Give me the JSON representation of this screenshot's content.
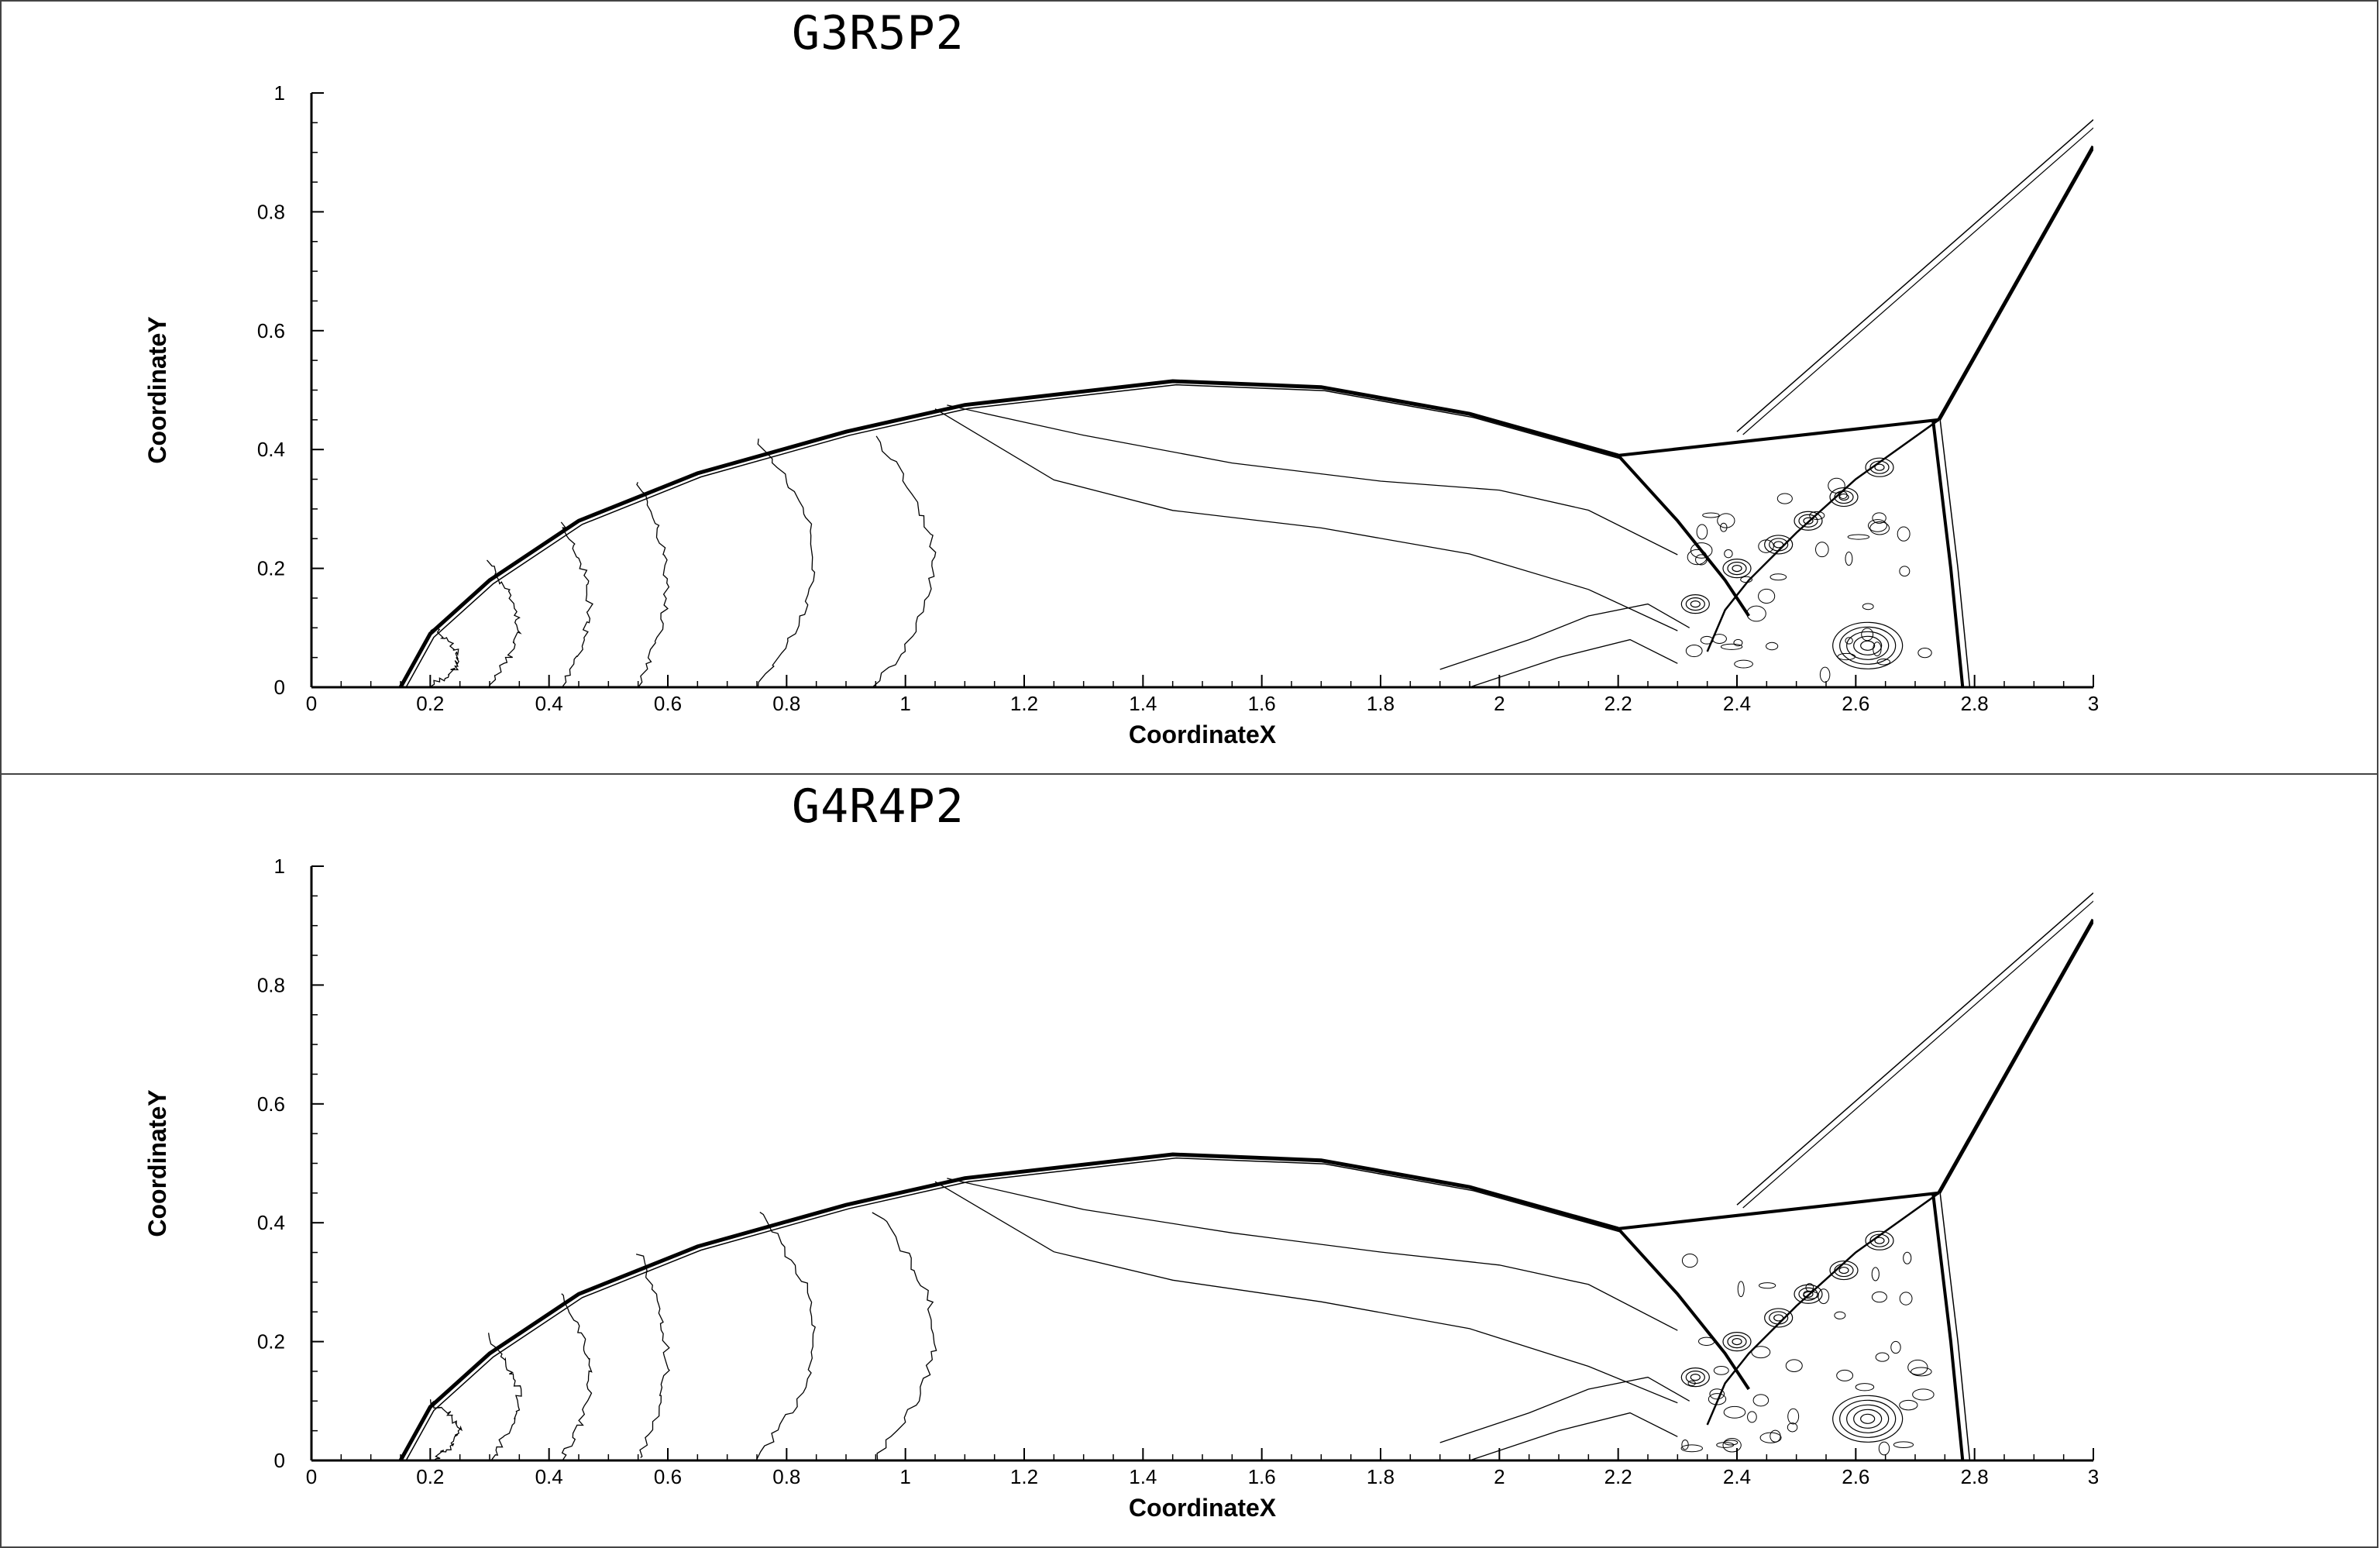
{
  "chart_data": [
    {
      "type": "contour",
      "title": "G3R5P2",
      "xlabel": "CoordinateX",
      "ylabel": "CoordinateY",
      "xlim": [
        0,
        3
      ],
      "ylim": [
        0,
        1
      ],
      "xticks": [
        "0",
        "0.2",
        "0.4",
        "0.6",
        "0.8",
        "1",
        "1.2",
        "1.4",
        "1.6",
        "1.8",
        "2",
        "2.2",
        "2.4",
        "2.6",
        "2.8",
        "3"
      ],
      "yticks": [
        "0",
        "0.2",
        "0.4",
        "0.6",
        "0.8",
        "1"
      ],
      "features": {
        "bow_shock": [
          [
            0.15,
            0.0
          ],
          [
            0.2,
            0.09
          ],
          [
            0.3,
            0.18
          ],
          [
            0.45,
            0.28
          ],
          [
            0.65,
            0.36
          ],
          [
            0.9,
            0.43
          ],
          [
            1.1,
            0.475
          ],
          [
            1.45,
            0.515
          ],
          [
            1.7,
            0.505
          ],
          [
            1.95,
            0.46
          ],
          [
            2.2,
            0.39
          ]
        ],
        "mach_stem_lower": [
          [
            2.2,
            0.39
          ],
          [
            2.3,
            0.28
          ],
          [
            2.38,
            0.18
          ],
          [
            2.42,
            0.12
          ]
        ],
        "triple_line": [
          [
            2.2,
            0.39
          ],
          [
            2.74,
            0.45
          ]
        ],
        "reflected_shock_upper": [
          [
            2.74,
            0.45
          ],
          [
            3.0,
            0.91
          ]
        ],
        "thin_oblique_line": [
          [
            2.4,
            0.43
          ],
          [
            3.0,
            0.955
          ]
        ],
        "near_vertical_shock": [
          [
            2.73,
            0.45
          ],
          [
            2.76,
            0.2
          ],
          [
            2.78,
            0.0
          ]
        ],
        "shear_layer": [
          [
            2.74,
            0.45
          ],
          [
            2.6,
            0.35
          ],
          [
            2.5,
            0.26
          ],
          [
            2.42,
            0.18
          ],
          [
            2.38,
            0.13
          ],
          [
            2.35,
            0.06
          ]
        ]
      }
    },
    {
      "type": "contour",
      "title": "G4R4P2",
      "xlabel": "CoordinateX",
      "ylabel": "CoordinateY",
      "xlim": [
        0,
        3
      ],
      "ylim": [
        0,
        1
      ],
      "xticks": [
        "0",
        "0.2",
        "0.4",
        "0.6",
        "0.8",
        "1",
        "1.2",
        "1.4",
        "1.6",
        "1.8",
        "2",
        "2.2",
        "2.4",
        "2.6",
        "2.8",
        "3"
      ],
      "yticks": [
        "0",
        "0.2",
        "0.4",
        "0.6",
        "0.8",
        "1"
      ],
      "features": {
        "bow_shock": [
          [
            0.15,
            0.0
          ],
          [
            0.2,
            0.09
          ],
          [
            0.3,
            0.18
          ],
          [
            0.45,
            0.28
          ],
          [
            0.65,
            0.36
          ],
          [
            0.9,
            0.43
          ],
          [
            1.1,
            0.475
          ],
          [
            1.45,
            0.515
          ],
          [
            1.7,
            0.505
          ],
          [
            1.95,
            0.46
          ],
          [
            2.2,
            0.39
          ]
        ],
        "mach_stem_lower": [
          [
            2.2,
            0.39
          ],
          [
            2.3,
            0.28
          ],
          [
            2.38,
            0.18
          ],
          [
            2.42,
            0.12
          ]
        ],
        "triple_line": [
          [
            2.2,
            0.39
          ],
          [
            2.74,
            0.45
          ]
        ],
        "reflected_shock_upper": [
          [
            2.74,
            0.45
          ],
          [
            3.0,
            0.91
          ]
        ],
        "thin_oblique_line": [
          [
            2.4,
            0.43
          ],
          [
            3.0,
            0.955
          ]
        ],
        "near_vertical_shock": [
          [
            2.73,
            0.45
          ],
          [
            2.76,
            0.2
          ],
          [
            2.78,
            0.0
          ]
        ],
        "shear_layer": [
          [
            2.74,
            0.45
          ],
          [
            2.6,
            0.35
          ],
          [
            2.5,
            0.26
          ],
          [
            2.42,
            0.18
          ],
          [
            2.38,
            0.13
          ],
          [
            2.35,
            0.06
          ]
        ]
      }
    }
  ]
}
